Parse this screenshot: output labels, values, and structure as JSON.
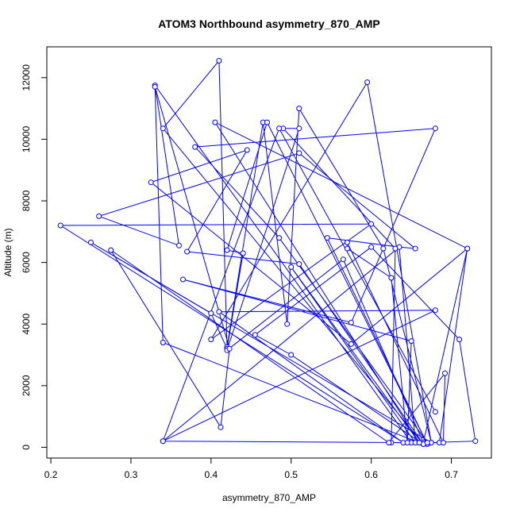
{
  "chart_data": {
    "type": "line",
    "title": "ATOM3 Northbound asymmetry_870_AMP",
    "xlabel": "asymmetry_870_AMP",
    "ylabel": "Altitude (m)",
    "xlim": [
      0.195,
      0.75
    ],
    "ylim": [
      -350,
      13000
    ],
    "xticks": [
      "0.2",
      "0.3",
      "0.4",
      "0.5",
      "0.6",
      "0.7"
    ],
    "yticks": [
      "0",
      "2000",
      "4000",
      "6000",
      "8000",
      "10000",
      "12000"
    ],
    "grid": false,
    "legend": "none",
    "line_color": "#0000ff",
    "marker": "open-circle",
    "series": [
      {
        "x": [
          0.665,
          0.34,
          0.41,
          0.42,
          0.465,
          0.495,
          0.51,
          0.615,
          0.675,
          0.65,
          0.33,
          0.36,
          0.26,
          0.51,
          0.655,
          0.635,
          0.34,
          0.68,
          0.41,
          0.64,
          0.212,
          0.6,
          0.4,
          0.595,
          0.675,
          0.25,
          0.4,
          0.42,
          0.44,
          0.42,
          0.47,
          0.67,
          0.545,
          0.635,
          0.655,
          0.5,
          0.66,
          0.405,
          0.72,
          0.665,
          0.565,
          0.42,
          0.51,
          0.49,
          0.63,
          0.625,
          0.685,
          0.72,
          0.575,
          0.325,
          0.445,
          0.37,
          0.51,
          0.665,
          0.5,
          0.455,
          0.6,
          0.71,
          0.73,
          0.67,
          0.485,
          0.38,
          0.68,
          0.575,
          0.365,
          0.65,
          0.645,
          0.625,
          0.57,
          0.57,
          0.69,
          0.692,
          0.622,
          0.275,
          0.412,
          0.423,
          0.33,
          0.34,
          0.66,
          0.34,
          0.485,
          0.68
        ],
        "y": [
          100,
          10350,
          12550,
          3250,
          10550,
          4000,
          11000,
          6450,
          150,
          150,
          11750,
          6550,
          7500,
          9550,
          6450,
          6500,
          200,
          4450,
          4400,
          150,
          7200,
          7250,
          3500,
          11850,
          150,
          6650,
          4350,
          3200,
          6300,
          6400,
          10550,
          100,
          6800,
          6500,
          150,
          5850,
          150,
          10550,
          6450,
          150,
          6100,
          3150,
          10350,
          10350,
          6450,
          150,
          150,
          6450,
          3350,
          8600,
          9650,
          6350,
          5950,
          100,
          3000,
          3650,
          6500,
          3500,
          200,
          150,
          6800,
          9750,
          10350,
          4050,
          5450,
          3450,
          150,
          5500,
          6450,
          6650,
          150,
          2400,
          150,
          6400,
          650,
          3200,
          11700,
          3400,
          150,
          200,
          10350,
          1150
        ]
      }
    ]
  }
}
